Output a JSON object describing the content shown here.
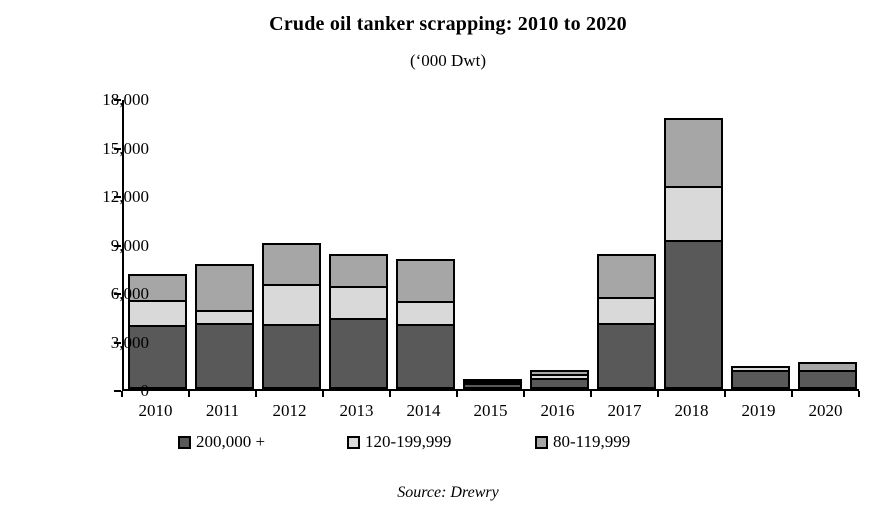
{
  "title": "Crude oil tanker scrapping: 2010 to 2020",
  "subtitle": "(‘000 Dwt)",
  "source": "Source: Drewry",
  "chart_data": {
    "type": "bar",
    "stacked": true,
    "title": "Crude oil tanker scrapping: 2010 to 2020",
    "subtitle": "('000 Dwt)",
    "xlabel": "",
    "ylabel": "'000 Dwt",
    "ylim": [
      0,
      18000
    ],
    "ytick_interval": 3000,
    "ytick_labels": [
      "0",
      "3,000",
      "6,000",
      "9,000",
      "12,000",
      "15,000",
      "18,000"
    ],
    "grid": false,
    "legend_position": "bottom",
    "categories": [
      "2010",
      "2011",
      "2012",
      "2013",
      "2014",
      "2015",
      "2016",
      "2017",
      "2018",
      "2019",
      "2020"
    ],
    "series": [
      {
        "name": "200,000 +",
        "color": "#595959",
        "values": [
          3950,
          4100,
          4000,
          4400,
          4050,
          400,
          700,
          4100,
          9200,
          1150,
          1150
        ]
      },
      {
        "name": "120-199,999",
        "color": "#d9d9d9",
        "values": [
          1700,
          900,
          2650,
          2100,
          1500,
          100,
          350,
          1700,
          3500,
          400,
          0
        ]
      },
      {
        "name": "80-119,999",
        "color": "#a6a6a6",
        "values": [
          1700,
          3000,
          2650,
          2100,
          2750,
          200,
          350,
          2800,
          4300,
          0,
          650
        ]
      }
    ],
    "totals": [
      7350,
      8000,
      9300,
      8600,
      8300,
      700,
      1400,
      8600,
      17000,
      1550,
      1800
    ]
  }
}
